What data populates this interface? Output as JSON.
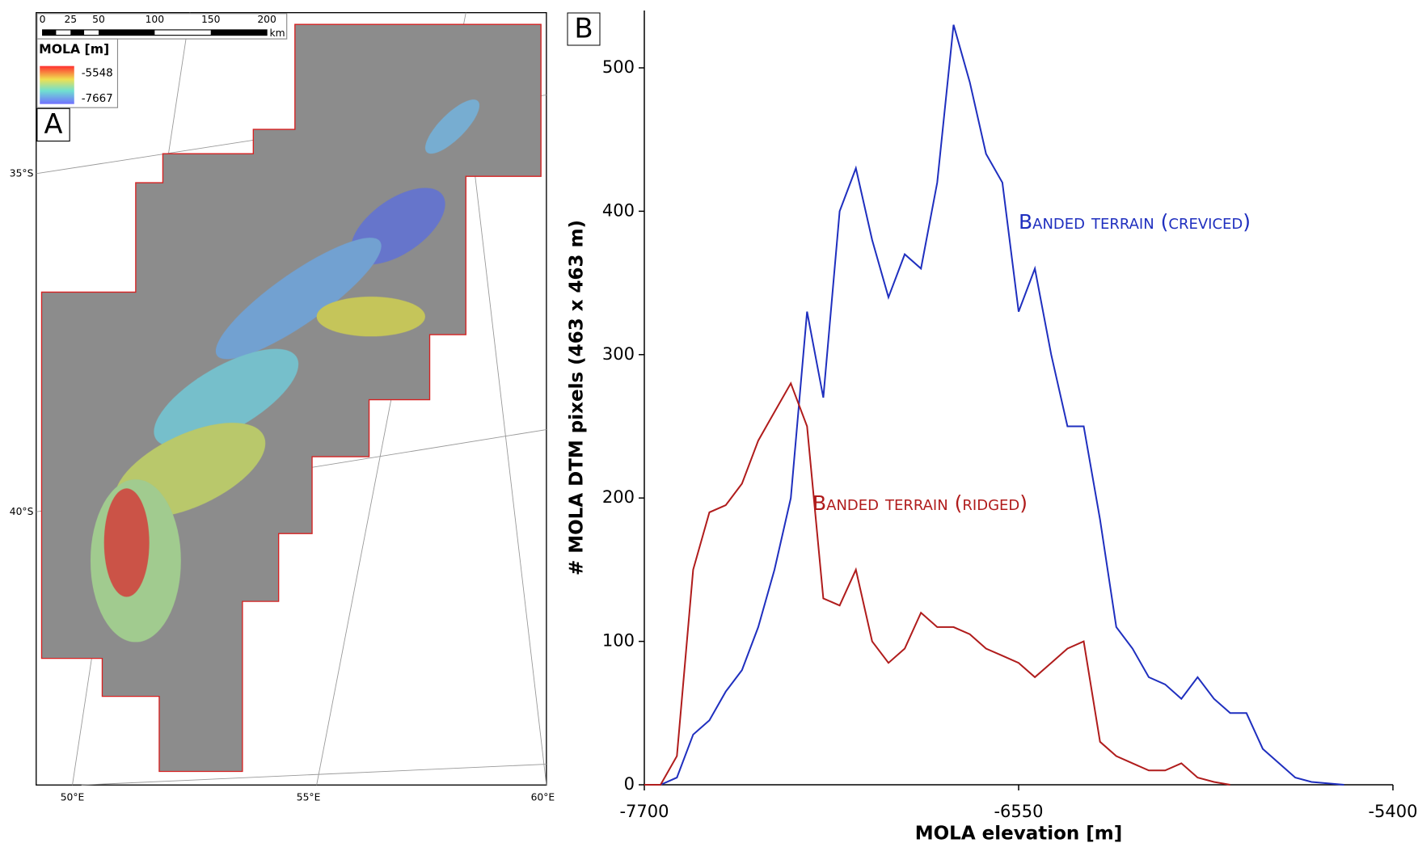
{
  "map": {
    "panel_label": "A",
    "legend_title": "MOLA [m]",
    "legend_max": "-5548",
    "legend_min": "-7667",
    "scale_labels": [
      "0",
      "25",
      "50",
      "100",
      "150",
      "200"
    ],
    "scale_unit": "km",
    "lat_labels": [
      "35°S",
      "40°S"
    ],
    "lon_labels": [
      "50°E",
      "55°E",
      "60°E"
    ]
  },
  "chart_data": {
    "type": "line",
    "panel_label": "B",
    "x_label": "MOLA elevation [m]",
    "y_label": "# MOLA DTM pixels (463 x 463 m)",
    "x": [
      -7700,
      -7650,
      -7600,
      -7550,
      -7500,
      -7450,
      -7400,
      -7350,
      -7300,
      -7250,
      -7200,
      -7150,
      -7100,
      -7050,
      -7000,
      -6950,
      -6900,
      -6850,
      -6800,
      -6750,
      -6700,
      -6650,
      -6600,
      -6550,
      -6500,
      -6450,
      -6400,
      -6350,
      -6300,
      -6250,
      -6200,
      -6150,
      -6100,
      -6050,
      -6000,
      -5950,
      -5900,
      -5850,
      -5800,
      -5750,
      -5700,
      -5650,
      -5600,
      -5550
    ],
    "series": [
      {
        "name": "Banded terrain (creviced)",
        "color": "#1f2fbf",
        "values": [
          0,
          0,
          5,
          35,
          45,
          65,
          80,
          110,
          150,
          200,
          330,
          270,
          400,
          430,
          380,
          340,
          370,
          360,
          420,
          530,
          490,
          440,
          420,
          330,
          360,
          300,
          250,
          250,
          185,
          110,
          95,
          75,
          70,
          60,
          75,
          60,
          50,
          50,
          25,
          15,
          5,
          2,
          1,
          0
        ]
      },
      {
        "name": "Banded terrain (ridged)",
        "color": "#b01c1c",
        "values": [
          0,
          0,
          20,
          150,
          190,
          195,
          210,
          240,
          260,
          280,
          250,
          130,
          125,
          150,
          100,
          85,
          95,
          120,
          110,
          110,
          105,
          95,
          90,
          85,
          75,
          85,
          95,
          100,
          30,
          20,
          15,
          10,
          10,
          15,
          5,
          2,
          0,
          null,
          null,
          null,
          null,
          null,
          null,
          null
        ]
      }
    ],
    "xlim": [
      -7700,
      -5400
    ],
    "xticks": [
      -7700,
      -6550,
      -5400
    ],
    "ylim": [
      0,
      540
    ],
    "yticks": [
      0,
      100,
      200,
      300,
      400,
      500
    ]
  }
}
